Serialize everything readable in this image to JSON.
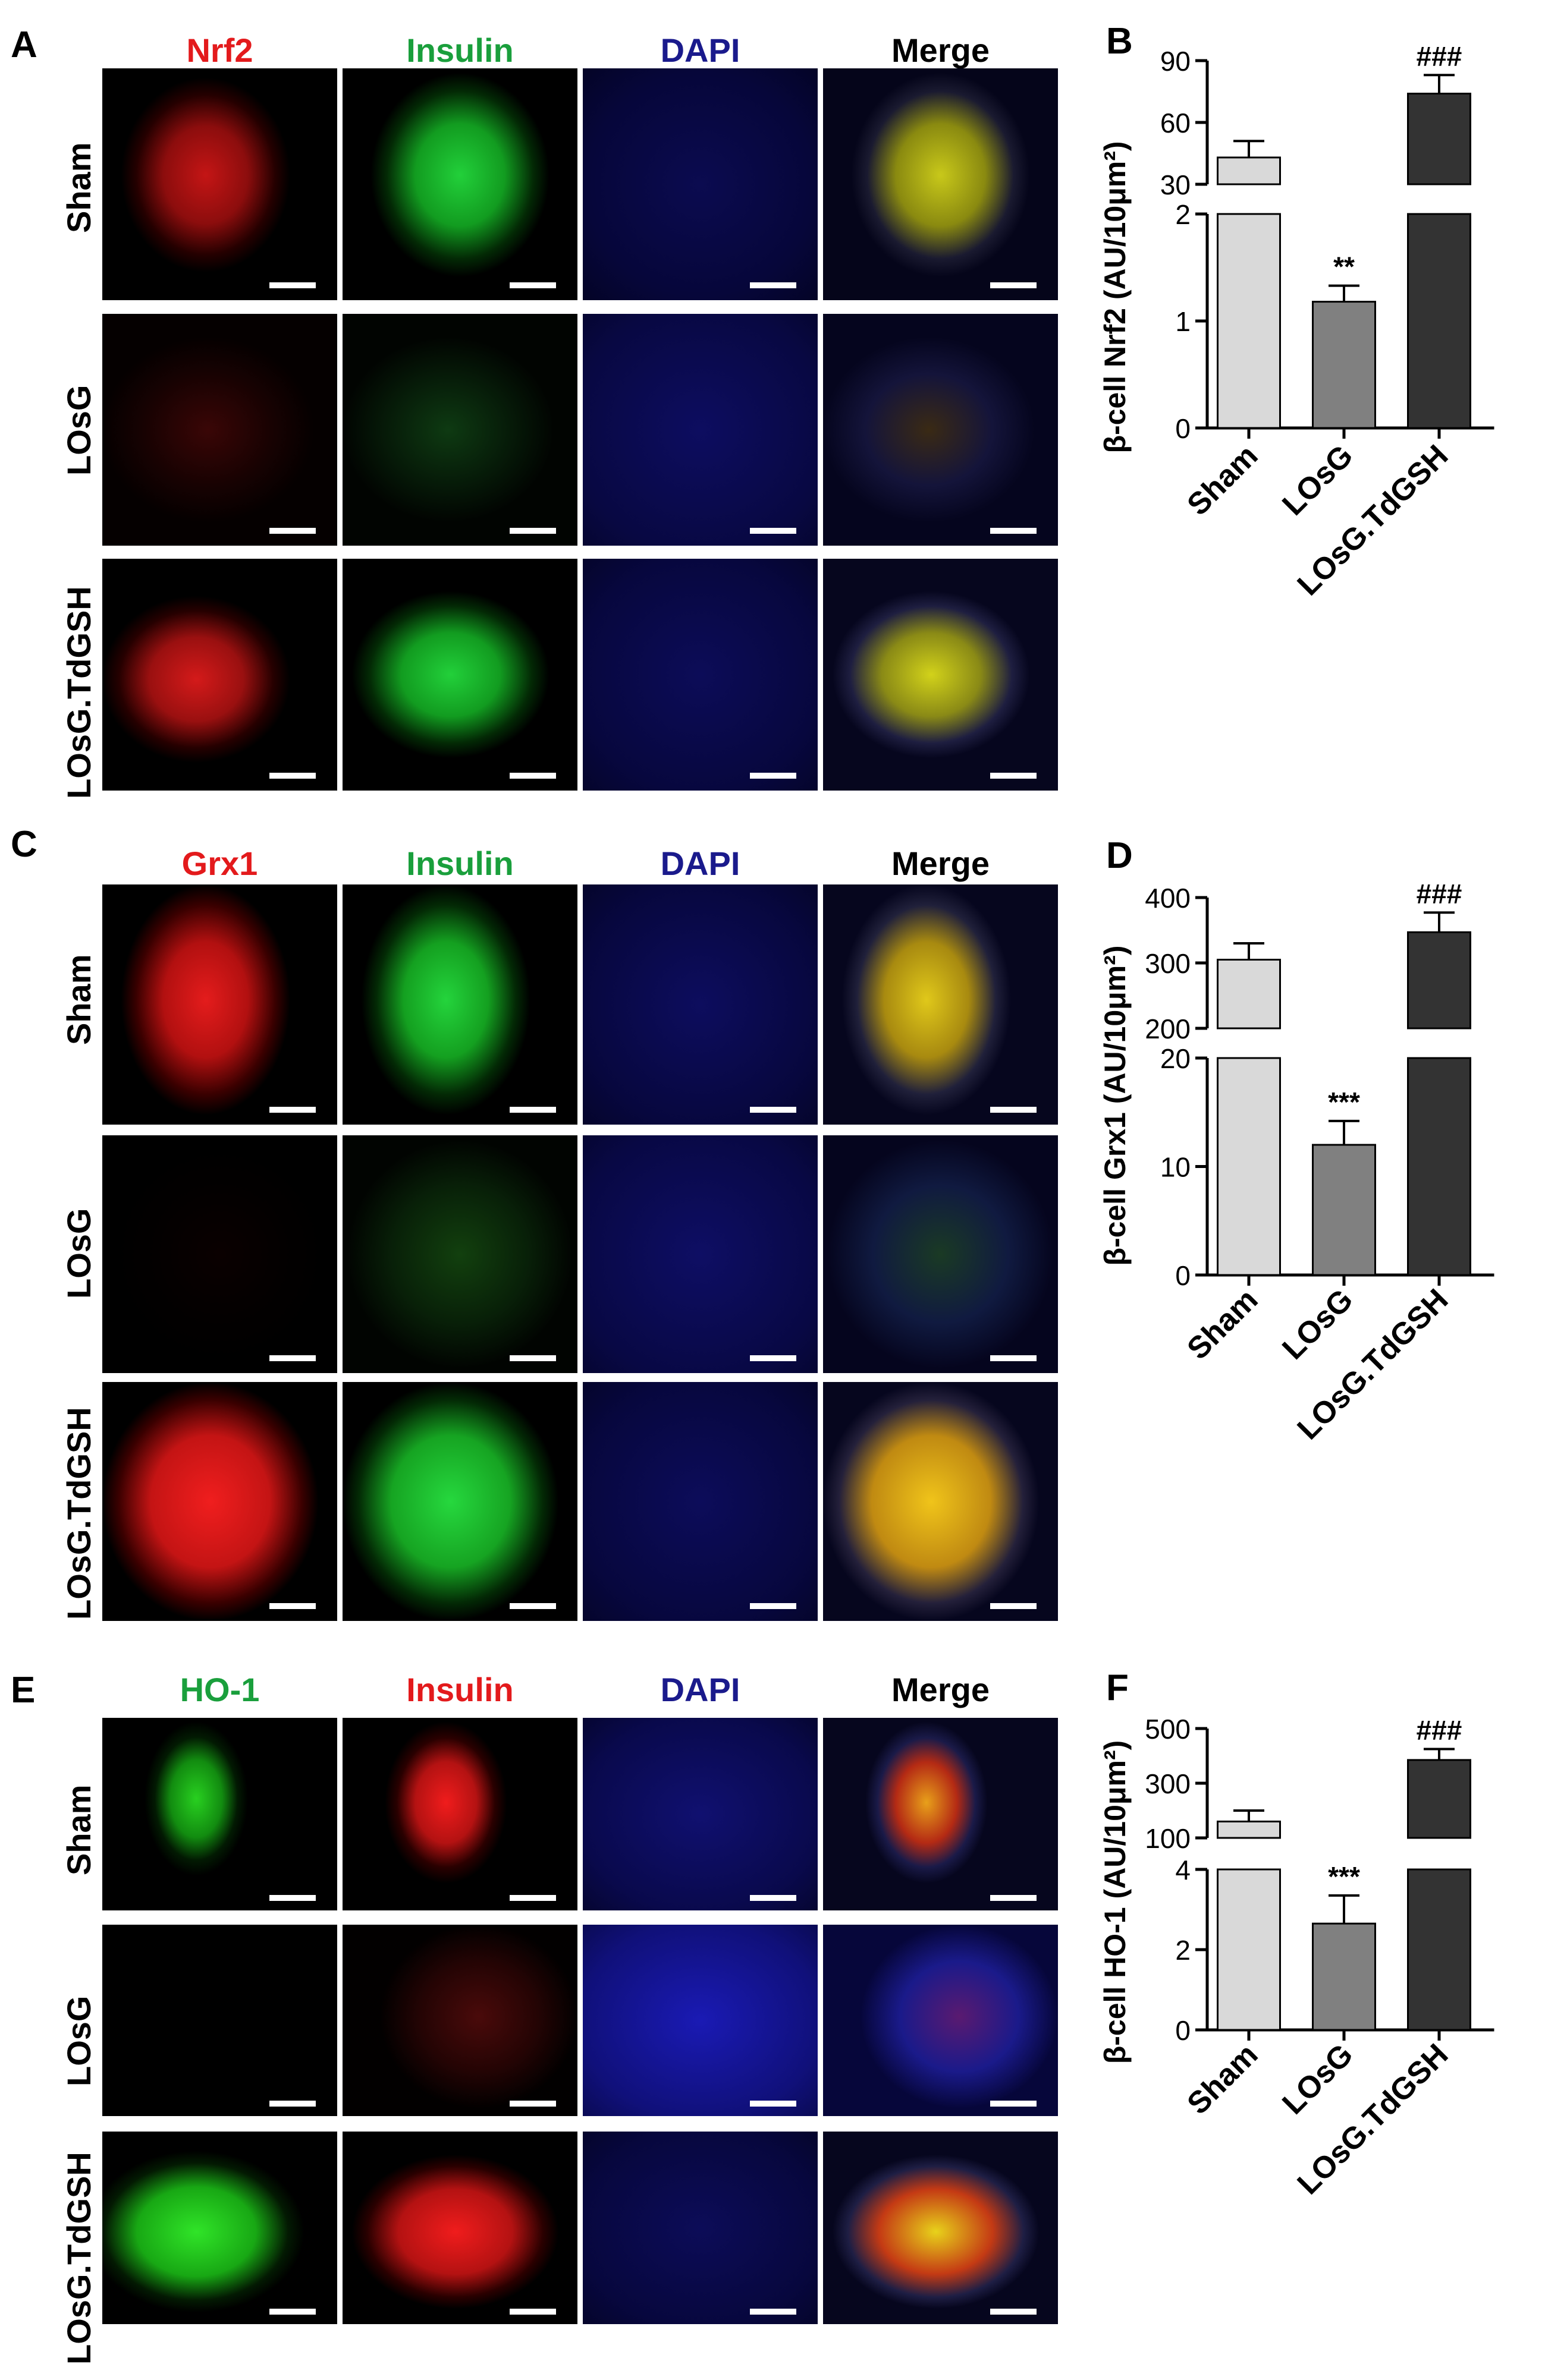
{
  "figure": [
    {
      "panel_letter": "A",
      "columns": [
        {
          "label": "Nrf2",
          "color": "#e31a1c"
        },
        {
          "label": "Insulin",
          "color": "#1a9f3c"
        },
        {
          "label": "DAPI",
          "color": "#1a1a8c"
        },
        {
          "label": "Merge",
          "color": "#000000"
        }
      ],
      "rows": [
        "Sham",
        "LOsG",
        "LOsG.TdGSH"
      ]
    },
    {
      "panel_letter": "C",
      "columns": [
        {
          "label": "Grx1",
          "color": "#e31a1c"
        },
        {
          "label": "Insulin",
          "color": "#1a9f3c"
        },
        {
          "label": "DAPI",
          "color": "#1a1a8c"
        },
        {
          "label": "Merge",
          "color": "#000000"
        }
      ],
      "rows": [
        "Sham",
        "LOsG",
        "LOsG.TdGSH"
      ]
    },
    {
      "panel_letter": "E",
      "columns": [
        {
          "label": "HO-1",
          "color": "#1a9f3c"
        },
        {
          "label": "Insulin",
          "color": "#e31a1c"
        },
        {
          "label": "DAPI",
          "color": "#1a1a8c"
        },
        {
          "label": "Merge",
          "color": "#000000"
        }
      ],
      "rows": [
        "Sham",
        "LOsG",
        "LOsG.TdGSH"
      ]
    }
  ],
  "chart_data": [
    {
      "panel_letter": "B",
      "type": "bar",
      "categories": [
        "Sham",
        "LOsG",
        "LOsG.TdGSH"
      ],
      "values": [
        43,
        1.18,
        74
      ],
      "errors": [
        8,
        0.15,
        9
      ],
      "annotations": [
        "",
        "**",
        "###"
      ],
      "ylabel": "β-cell Nrf2 (AU/10μm²)",
      "broken_axis": {
        "lower_range": [
          0,
          2
        ],
        "lower_ticks": [
          0,
          1,
          2
        ],
        "upper_range": [
          30,
          90
        ],
        "upper_ticks": [
          30,
          60,
          90
        ]
      },
      "bar_colors": [
        "#d9d9d9",
        "#808080",
        "#333333"
      ]
    },
    {
      "panel_letter": "D",
      "type": "bar",
      "categories": [
        "Sham",
        "LOsG",
        "LOsG.TdGSH"
      ],
      "values": [
        305,
        12,
        347
      ],
      "errors": [
        25,
        2.2,
        30
      ],
      "annotations": [
        "",
        "***",
        "###"
      ],
      "ylabel": "β-cell Grx1 (AU/10μm²)",
      "broken_axis": {
        "lower_range": [
          0,
          20
        ],
        "lower_ticks": [
          0,
          10,
          20
        ],
        "upper_range": [
          200,
          400
        ],
        "upper_ticks": [
          200,
          300,
          400
        ]
      },
      "bar_colors": [
        "#d9d9d9",
        "#808080",
        "#333333"
      ]
    },
    {
      "panel_letter": "F",
      "type": "bar",
      "categories": [
        "Sham",
        "LOsG",
        "LOsG.TdGSH"
      ],
      "values": [
        160,
        2.65,
        385
      ],
      "errors": [
        40,
        0.7,
        40
      ],
      "annotations": [
        "",
        "***",
        "###"
      ],
      "ylabel": "β-cell HO-1 (AU/10μm²)",
      "broken_axis": {
        "lower_range": [
          0,
          4
        ],
        "lower_ticks": [
          0,
          2,
          4
        ],
        "upper_range": [
          100,
          500
        ],
        "upper_ticks": [
          100,
          300,
          500
        ]
      },
      "bar_colors": [
        "#d9d9d9",
        "#808080",
        "#333333"
      ]
    }
  ]
}
